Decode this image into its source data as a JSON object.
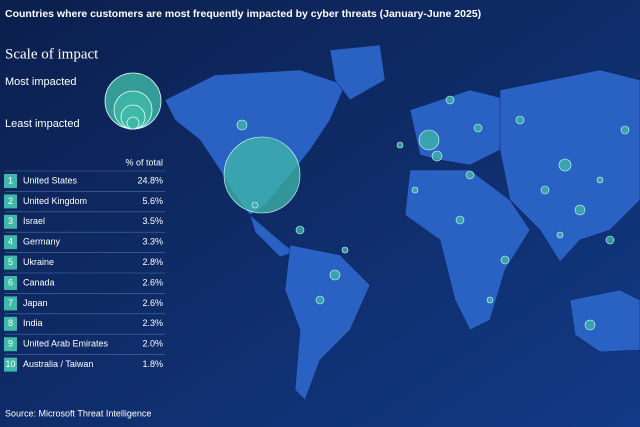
{
  "title": "Countries where customers are most frequently impacted by cyber threats  (January-June 2025)",
  "legend": {
    "title": "Scale of impact",
    "most": "Most impacted",
    "least": "Least impacted"
  },
  "table": {
    "header": "% of total",
    "rows": [
      {
        "rank": 1,
        "country": "United States",
        "share": "24.8%"
      },
      {
        "rank": 2,
        "country": "United Kingdom",
        "share": "5.6%"
      },
      {
        "rank": 3,
        "country": "Israel",
        "share": "3.5%"
      },
      {
        "rank": 4,
        "country": "Germany",
        "share": "3.3%"
      },
      {
        "rank": 5,
        "country": "Ukraine",
        "share": "2.8%"
      },
      {
        "rank": 6,
        "country": "Canada",
        "share": "2.6%"
      },
      {
        "rank": 7,
        "country": "Japan",
        "share": "2.6%"
      },
      {
        "rank": 8,
        "country": "India",
        "share": "2.3%"
      },
      {
        "rank": 9,
        "country": "United Arab Emirates",
        "share": "2.0%"
      },
      {
        "rank": 10,
        "country": "Australia / Taiwan",
        "share": "1.8%"
      }
    ]
  },
  "source": "Source: Microsoft Threat Intelligence"
}
